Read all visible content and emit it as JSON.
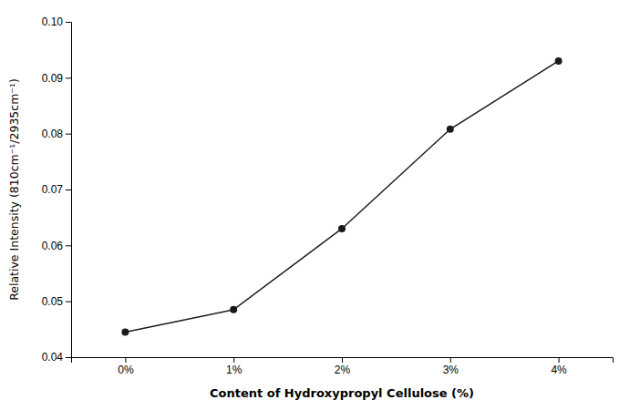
{
  "chart_data": {
    "type": "line",
    "categories": [
      "0%",
      "1%",
      "2%",
      "3%",
      "4%"
    ],
    "values": [
      0.0445,
      0.0485,
      0.063,
      0.0808,
      0.093
    ],
    "xlabel": "Content of Hydroxypropyl Cellulose (%)",
    "ylabel": "Relative Intensity (810cm⁻¹/2935cm⁻¹)",
    "ylim": [
      0.04,
      0.1
    ],
    "yticks": [
      0.04,
      0.05,
      0.06,
      0.07,
      0.08,
      0.09,
      {
        "value": 0.1,
        "label": "0.10"
      }
    ],
    "color": "#1a1a1a",
    "marker": "circle",
    "grid": false
  }
}
